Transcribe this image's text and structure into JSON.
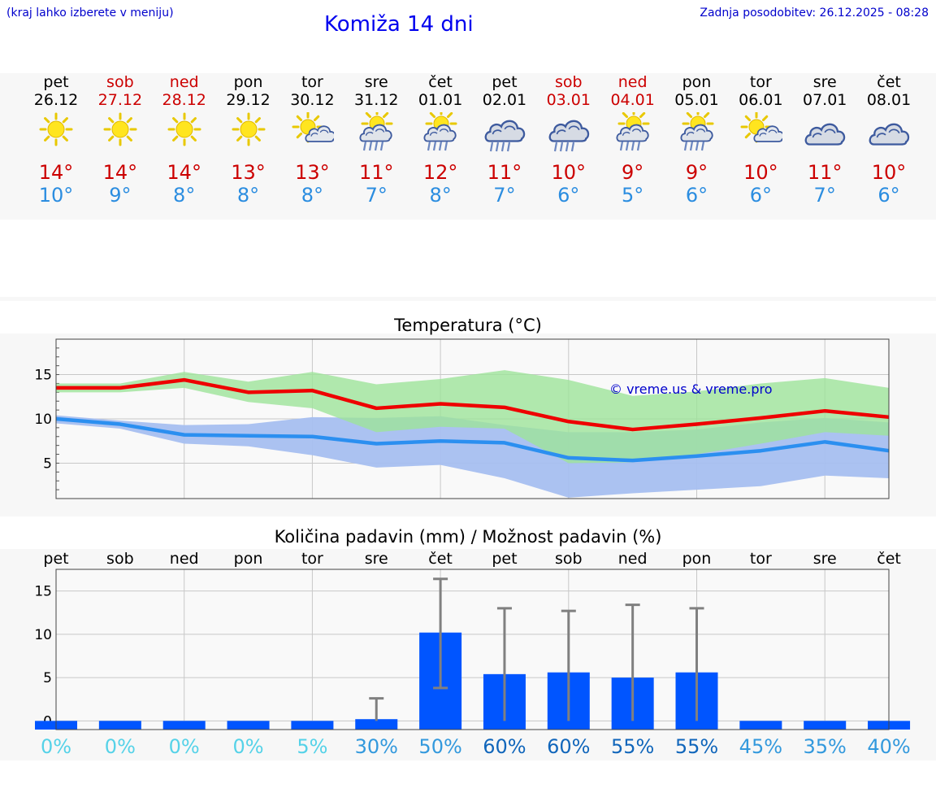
{
  "header": {
    "hint": "(kraj lahko izberete v meniju)",
    "title": "Komiža 14 dni",
    "updated": "Zadnja posodobitev: 26.12.2025 - 08:28"
  },
  "days": [
    {
      "name": "pet",
      "date": "26.12",
      "weekend": false,
      "icon": "sun",
      "max": "14°",
      "min": "10°"
    },
    {
      "name": "sob",
      "date": "27.12",
      "weekend": true,
      "icon": "sun",
      "max": "14°",
      "min": "9°"
    },
    {
      "name": "ned",
      "date": "28.12",
      "weekend": true,
      "icon": "sun",
      "max": "14°",
      "min": "8°"
    },
    {
      "name": "pon",
      "date": "29.12",
      "weekend": false,
      "icon": "sun",
      "max": "13°",
      "min": "8°"
    },
    {
      "name": "tor",
      "date": "30.12",
      "weekend": false,
      "icon": "sun-cloud",
      "max": "13°",
      "min": "8°"
    },
    {
      "name": "sre",
      "date": "31.12",
      "weekend": false,
      "icon": "sun-cloud-rain",
      "max": "11°",
      "min": "7°"
    },
    {
      "name": "čet",
      "date": "01.01",
      "weekend": false,
      "icon": "sun-cloud-rain",
      "max": "12°",
      "min": "8°"
    },
    {
      "name": "pet",
      "date": "02.01",
      "weekend": false,
      "icon": "cloud-rain",
      "max": "11°",
      "min": "7°"
    },
    {
      "name": "sob",
      "date": "03.01",
      "weekend": true,
      "icon": "cloud-rain",
      "max": "10°",
      "min": "6°"
    },
    {
      "name": "ned",
      "date": "04.01",
      "weekend": true,
      "icon": "sun-cloud-rain",
      "max": "9°",
      "min": "5°"
    },
    {
      "name": "pon",
      "date": "05.01",
      "weekend": false,
      "icon": "sun-cloud-rain",
      "max": "9°",
      "min": "6°"
    },
    {
      "name": "tor",
      "date": "06.01",
      "weekend": false,
      "icon": "sun-cloud",
      "max": "10°",
      "min": "6°"
    },
    {
      "name": "sre",
      "date": "07.01",
      "weekend": false,
      "icon": "cloud",
      "max": "11°",
      "min": "7°"
    },
    {
      "name": "čet",
      "date": "08.01",
      "weekend": false,
      "icon": "cloud",
      "max": "10°",
      "min": "6°"
    }
  ],
  "colors": {
    "weekend": "#cc0000",
    "weekday": "#000000",
    "max_line": "#ee0000",
    "min_line": "#2b8ff0",
    "max_band": "#9de49a",
    "min_band": "#a6bff0",
    "bar": "#0055ff",
    "error_bar": "#808080"
  },
  "chart_data": [
    {
      "type": "line",
      "title": "Temperatura (°C)",
      "watermark": "© vreme.us & vreme.pro",
      "x": [
        "26.12",
        "27.12",
        "28.12",
        "29.12",
        "30.12",
        "31.12",
        "01.01",
        "02.01",
        "03.01",
        "04.01",
        "05.01",
        "06.01",
        "07.01",
        "08.01"
      ],
      "ylim": [
        1,
        19
      ],
      "yticks": [
        5,
        10,
        15
      ],
      "ytick_labels": [
        "5",
        "10",
        "15"
      ],
      "series": [
        {
          "name": "max",
          "values": [
            13.5,
            13.5,
            14.4,
            13.0,
            13.2,
            11.2,
            11.7,
            11.3,
            9.7,
            8.8,
            9.4,
            10.1,
            10.9,
            10.2
          ],
          "band_low": [
            13.0,
            13.0,
            13.5,
            11.9,
            11.2,
            8.5,
            9.1,
            8.9,
            5.0,
            5.1,
            6.0,
            7.2,
            8.5,
            8.1
          ],
          "band_high": [
            14.0,
            14.0,
            15.3,
            14.2,
            15.3,
            13.9,
            14.5,
            15.5,
            14.4,
            12.6,
            13.1,
            14.0,
            14.6,
            13.5
          ]
        },
        {
          "name": "min",
          "values": [
            10.0,
            9.4,
            8.2,
            8.1,
            8.0,
            7.2,
            7.5,
            7.3,
            5.6,
            5.3,
            5.8,
            6.4,
            7.4,
            6.4
          ],
          "band_low": [
            9.5,
            8.9,
            7.2,
            6.9,
            5.9,
            4.5,
            4.8,
            3.3,
            1.1,
            1.6,
            2.0,
            2.4,
            3.6,
            3.3
          ],
          "band_high": [
            10.4,
            9.8,
            9.3,
            9.4,
            10.2,
            10.1,
            10.3,
            9.3,
            8.5,
            8.5,
            8.8,
            9.6,
            10.1,
            9.6
          ]
        }
      ]
    },
    {
      "type": "bar",
      "title": "Količina padavin (mm) / Možnost padavin (%)",
      "categories": [
        "pet",
        "sob",
        "ned",
        "pon",
        "tor",
        "sre",
        "čet",
        "pet",
        "sob",
        "ned",
        "pon",
        "tor",
        "sre",
        "čet"
      ],
      "values": [
        0,
        0,
        0,
        0,
        0,
        0.2,
        10.2,
        5.4,
        5.6,
        5.0,
        5.6,
        0,
        0,
        0
      ],
      "error_low": [
        null,
        null,
        null,
        null,
        null,
        0,
        3.8,
        0,
        0,
        0,
        0,
        null,
        null,
        null
      ],
      "error_high": [
        null,
        null,
        null,
        null,
        null,
        2.6,
        16.4,
        13.0,
        12.7,
        13.4,
        13.0,
        null,
        null,
        null
      ],
      "probability": [
        "0%",
        "0%",
        "0%",
        "0%",
        "5%",
        "30%",
        "50%",
        "60%",
        "60%",
        "55%",
        "55%",
        "45%",
        "35%",
        "40%"
      ],
      "probability_colors": [
        "#55d2e8",
        "#55d2e8",
        "#55d2e8",
        "#55d2e8",
        "#55d2e8",
        "#3399dd",
        "#3399dd",
        "#1166bb",
        "#1166bb",
        "#1166bb",
        "#1166bb",
        "#3399dd",
        "#3399dd",
        "#3399dd"
      ],
      "ylim": [
        -1,
        17.5
      ],
      "yticks": [
        0,
        5,
        10,
        15
      ],
      "ytick_labels": [
        "0",
        "5",
        "10",
        "15"
      ]
    }
  ]
}
